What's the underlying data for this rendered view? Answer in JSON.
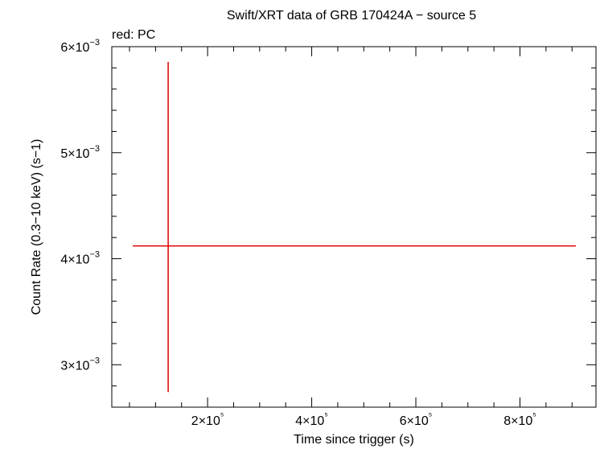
{
  "chart_data": {
    "type": "errorbar",
    "title": "Swift/XRT data of GRB 170424A − source 5",
    "legend_text": "red: PC",
    "xlabel": "Time since trigger (s)",
    "ylabel": "Count Rate (0.3−10 keV) (s−1)",
    "xlim": [
      16000,
      946000
    ],
    "ylim": [
      0.0026,
      0.006
    ],
    "xticks": [
      {
        "value": 200000,
        "label": "2×10⁵"
      },
      {
        "value": 400000,
        "label": "4×10⁵"
      },
      {
        "value": 600000,
        "label": "6×10⁵"
      },
      {
        "value": 800000,
        "label": "8×10⁵"
      }
    ],
    "yticks": [
      {
        "value": 0.003,
        "label": "3×10−3"
      },
      {
        "value": 0.004,
        "label": "4×10−3"
      },
      {
        "value": 0.005,
        "label": "5×10−3"
      },
      {
        "value": 0.006,
        "label": "6×10−3"
      }
    ],
    "xminorticks": [
      50000,
      100000,
      150000,
      250000,
      300000,
      350000,
      450000,
      500000,
      550000,
      650000,
      700000,
      750000,
      850000,
      900000
    ],
    "yminorticks": [
      0.0026,
      0.0028,
      0.0032,
      0.0034,
      0.0036,
      0.0038,
      0.0042,
      0.0044,
      0.0046,
      0.0048,
      0.0052,
      0.0054,
      0.0056,
      0.0058
    ],
    "series": [
      {
        "name": "PC",
        "color": "#e00000",
        "x": [
          124300
        ],
        "xerr_minus": [
          67900
        ],
        "xerr_plus": [
          783000
        ],
        "values": [
          0.004121
        ],
        "yerr_minus": [
          0.001379
        ],
        "yerr_plus": [
          0.001735
        ]
      }
    ]
  }
}
